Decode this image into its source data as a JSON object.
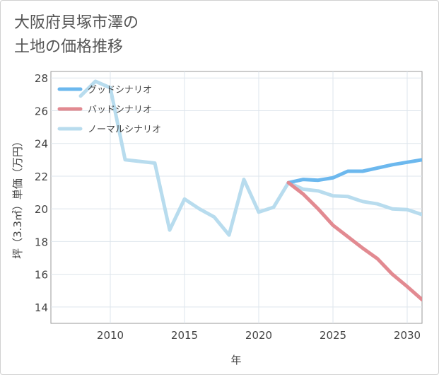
{
  "chart_data": {
    "type": "line",
    "title_lines": [
      "大阪府貝塚市澤の",
      "土地の価格推移"
    ],
    "xlabel": "年",
    "ylabel": "坪（3.3㎡）単価（万円）",
    "xlim": [
      2006,
      2031
    ],
    "ylim": [
      13,
      28.4
    ],
    "xticks": [
      2010,
      2015,
      2020,
      2025,
      2030
    ],
    "yticks": [
      14,
      16,
      18,
      20,
      22,
      24,
      26,
      28
    ],
    "legend_position": "top-left",
    "series": [
      {
        "name": "ノーマルシナリオ",
        "color": "#b8dcee",
        "x": [
          2008,
          2009,
          2010,
          2011,
          2012,
          2013,
          2014,
          2015,
          2016,
          2017,
          2018,
          2019,
          2020,
          2021,
          2022,
          2023,
          2024,
          2025,
          2026,
          2027,
          2028,
          2029,
          2030,
          2031
        ],
        "values": [
          26.9,
          27.8,
          27.4,
          23.0,
          22.9,
          22.8,
          18.7,
          20.6,
          20.0,
          19.5,
          18.4,
          21.8,
          19.8,
          20.1,
          21.6,
          21.2,
          21.1,
          20.8,
          20.75,
          20.45,
          20.3,
          20.0,
          19.95,
          19.65
        ]
      },
      {
        "name": "グッドシナリオ",
        "color": "#6cb8ee",
        "x": [
          2022,
          2023,
          2024,
          2025,
          2026,
          2027,
          2028,
          2029,
          2030,
          2031
        ],
        "values": [
          21.6,
          21.8,
          21.75,
          21.9,
          22.3,
          22.3,
          22.5,
          22.7,
          22.85,
          23.0
        ]
      },
      {
        "name": "バッドシナリオ",
        "color": "#e28a91",
        "x": [
          2022,
          2023,
          2024,
          2025,
          2026,
          2027,
          2028,
          2029,
          2030,
          2031
        ],
        "values": [
          21.6,
          20.9,
          20.0,
          19.0,
          18.3,
          17.6,
          16.95,
          16.0,
          15.25,
          14.45
        ]
      }
    ],
    "legend_order": [
      "グッドシナリオ",
      "バッドシナリオ",
      "ノーマルシナリオ"
    ]
  },
  "colors": {
    "grid": "#dde5ec",
    "axis": "#999999",
    "text": "#444444"
  }
}
